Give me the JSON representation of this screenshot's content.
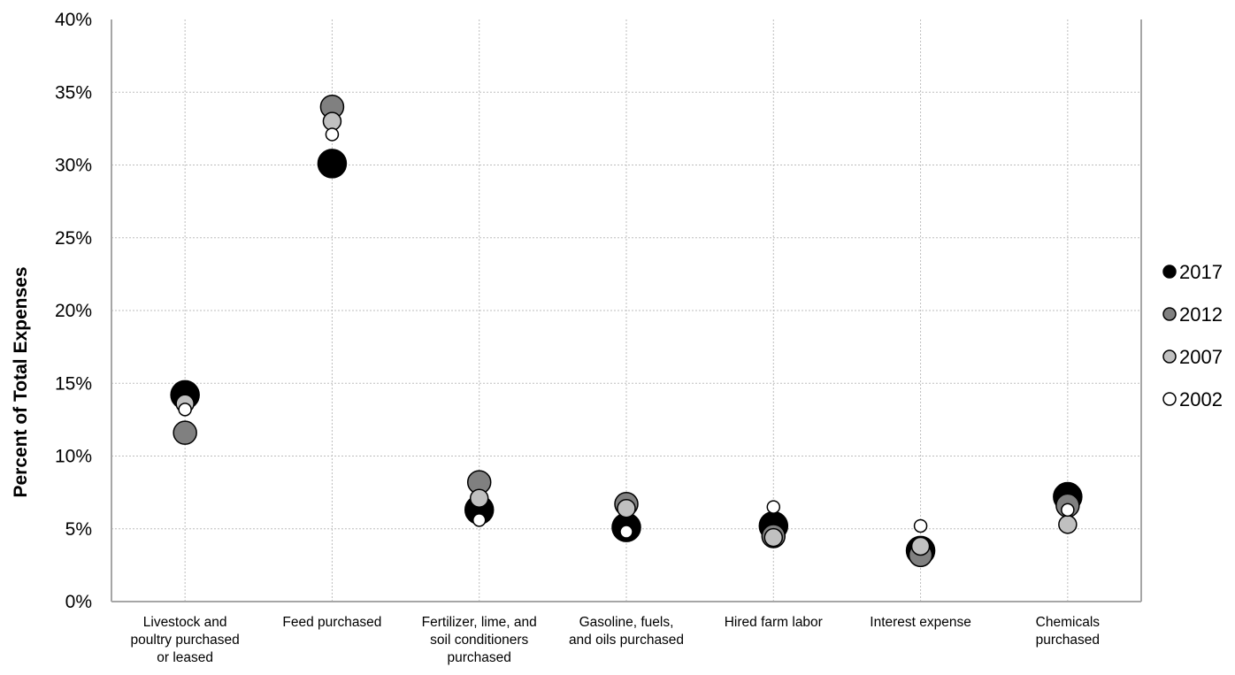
{
  "chart_data": {
    "type": "scatter",
    "title": "",
    "ylabel": "Percent of Total Expenses",
    "xlabel": "",
    "ylim": [
      0,
      40
    ],
    "yticks": [
      0,
      5,
      10,
      15,
      20,
      25,
      30,
      35,
      40
    ],
    "ytick_labels": [
      "0%",
      "5%",
      "10%",
      "15%",
      "20%",
      "25%",
      "30%",
      "35%",
      "40%"
    ],
    "grid": true,
    "legend_position": "right",
    "categories": [
      [
        "Livestock and",
        "poultry purchased",
        "or leased"
      ],
      [
        "Feed purchased"
      ],
      [
        "Fertilizer, lime, and",
        "soil conditioners",
        "purchased"
      ],
      [
        "Gasoline, fuels,",
        "and oils purchased"
      ],
      [
        "Hired farm labor"
      ],
      [
        "Interest expense"
      ],
      [
        "Chemicals",
        "purchased"
      ]
    ],
    "series": [
      {
        "name": "2017",
        "color": "#000000",
        "values": [
          14.2,
          30.1,
          6.3,
          5.1,
          5.2,
          3.5,
          7.2
        ]
      },
      {
        "name": "2012",
        "color": "#808080",
        "values": [
          11.6,
          34.0,
          8.2,
          6.7,
          4.5,
          3.2,
          6.6
        ]
      },
      {
        "name": "2007",
        "color": "#c0c0c0",
        "values": [
          13.6,
          33.0,
          7.1,
          6.4,
          4.4,
          3.8,
          5.3
        ]
      },
      {
        "name": "2002",
        "color": "#ffffff",
        "values": [
          13.2,
          32.1,
          5.6,
          4.8,
          6.5,
          5.2,
          6.3
        ]
      }
    ]
  }
}
